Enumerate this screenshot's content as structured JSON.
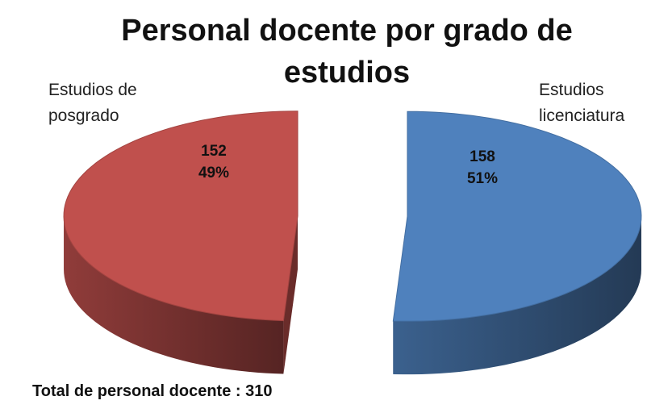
{
  "chart_data": {
    "type": "pie",
    "title": "Personal docente por grado de estudios",
    "categories": [
      "Estudios licenciatura",
      "Estudios de posgrado"
    ],
    "values": [
      158,
      152
    ],
    "percents": [
      51,
      49
    ],
    "percent_labels": [
      "51%",
      "49%"
    ],
    "colors": [
      "#4f81bd",
      "#c0504d"
    ],
    "total_label": "Total de personal docente :",
    "total": 310
  }
}
